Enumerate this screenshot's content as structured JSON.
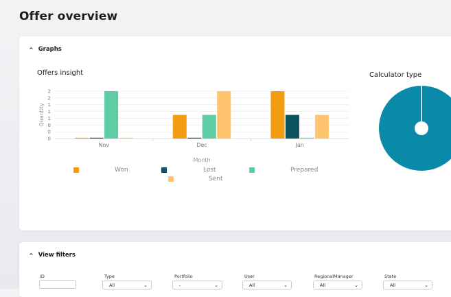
{
  "page": {
    "title": "Offer overview"
  },
  "graphs_section": {
    "header": "Graphs",
    "bar_chart_title": "Offers insight",
    "pie_chart_title": "Calculator type"
  },
  "chart_data": [
    {
      "type": "bar",
      "title": "Offers insight",
      "xlabel": "Month",
      "ylabel": "Quantity",
      "categories": [
        "Nov",
        "Dec",
        "Jan"
      ],
      "y_ticks": [
        "0",
        "0",
        "0",
        "1",
        "1",
        "1",
        "2",
        "2"
      ],
      "ylim": [
        0,
        2
      ],
      "legend_position": "bottom",
      "series": [
        {
          "name": "Won",
          "color": "#F39C12",
          "values": [
            0,
            1,
            2
          ]
        },
        {
          "name": "Lost",
          "color": "#0E5360",
          "values": [
            0,
            0,
            1
          ]
        },
        {
          "name": "Prepared",
          "color": "#5ECDA4",
          "values": [
            2,
            1,
            0
          ]
        },
        {
          "name": "Sent",
          "color": "#FFC56E",
          "values": [
            0,
            2,
            1
          ]
        }
      ]
    },
    {
      "type": "pie",
      "title": "Calculator type",
      "slices": [
        {
          "value": 1,
          "color": "#0A8AA8"
        }
      ]
    }
  ],
  "filters_section": {
    "header": "View filters",
    "fields": [
      {
        "label": "ID",
        "value": ""
      },
      {
        "label": "Type",
        "value": "All"
      },
      {
        "label": "Portfolio",
        "value": "-"
      },
      {
        "label": "User",
        "value": "All"
      },
      {
        "label": "RegionalManager",
        "value": "All"
      },
      {
        "label": "State",
        "value": "All"
      }
    ]
  },
  "icons": {
    "graphs_chevron": "chevron-up-icon",
    "filters_chevron": "chevron-up-icon",
    "select_caret": "chevron-down-icon"
  }
}
